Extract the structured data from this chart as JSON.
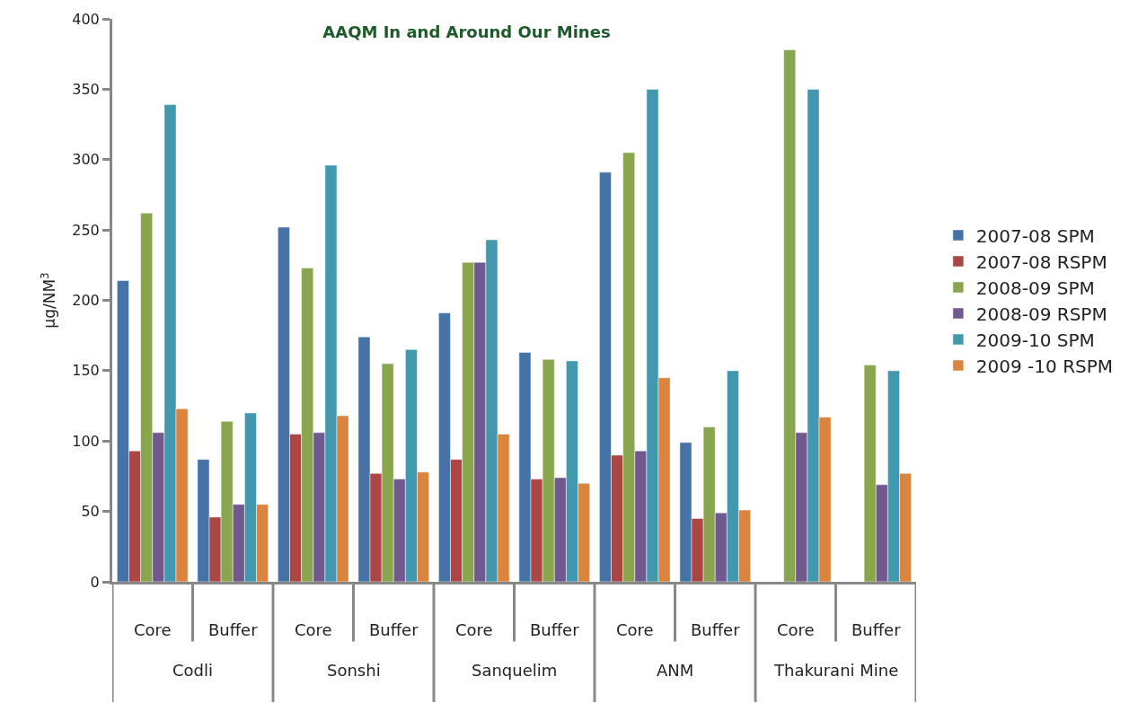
{
  "chart_data": {
    "type": "bar",
    "title": "AAQM In and Around Our Mines",
    "ylabel": "μg/NM$^{3}$",
    "categories": [
      "Core",
      "Buffer",
      "Core",
      "Buffer",
      "Core",
      "Buffer",
      "Core",
      "Buffer",
      "Core",
      "Buffer"
    ],
    "series": [
      {
        "name": "2007-08 SPM",
        "color": "#4572a7",
        "values": [
          214,
          87,
          252,
          174,
          191,
          163,
          291,
          99,
          null,
          null
        ]
      },
      {
        "name": "2007-08 RSPM",
        "color": "#aa4643",
        "values": [
          93,
          46,
          105,
          77,
          87,
          73,
          90,
          45,
          null,
          null
        ]
      },
      {
        "name": "2008-09 SPM",
        "color": "#89a54e",
        "values": [
          262,
          114,
          223,
          155,
          227,
          158,
          305,
          110,
          378,
          154
        ]
      },
      {
        "name": "2008-09 RSPM",
        "color": "#71588f",
        "values": [
          106,
          55,
          106,
          73,
          227,
          74,
          93,
          49,
          106,
          69
        ]
      },
      {
        "name": "2009-10 SPM",
        "color": "#4198af",
        "values": [
          339,
          120,
          296,
          165,
          243,
          157,
          350,
          150,
          350,
          150
        ]
      },
      {
        "name": "2009 -10 RSPM",
        "color": "#db843d",
        "values": [
          123,
          55,
          118,
          78,
          105,
          70,
          145,
          51,
          117,
          77
        ]
      }
    ],
    "annotations": [
      "Codli",
      "Sonshi",
      "Sanquelim",
      "ANM",
      "Thakurani Mine"
    ],
    "ylim": [
      0,
      400
    ],
    "yticks": [
      0,
      50,
      100,
      150,
      200,
      250,
      300,
      350,
      400
    ],
    "legend": "right"
  }
}
